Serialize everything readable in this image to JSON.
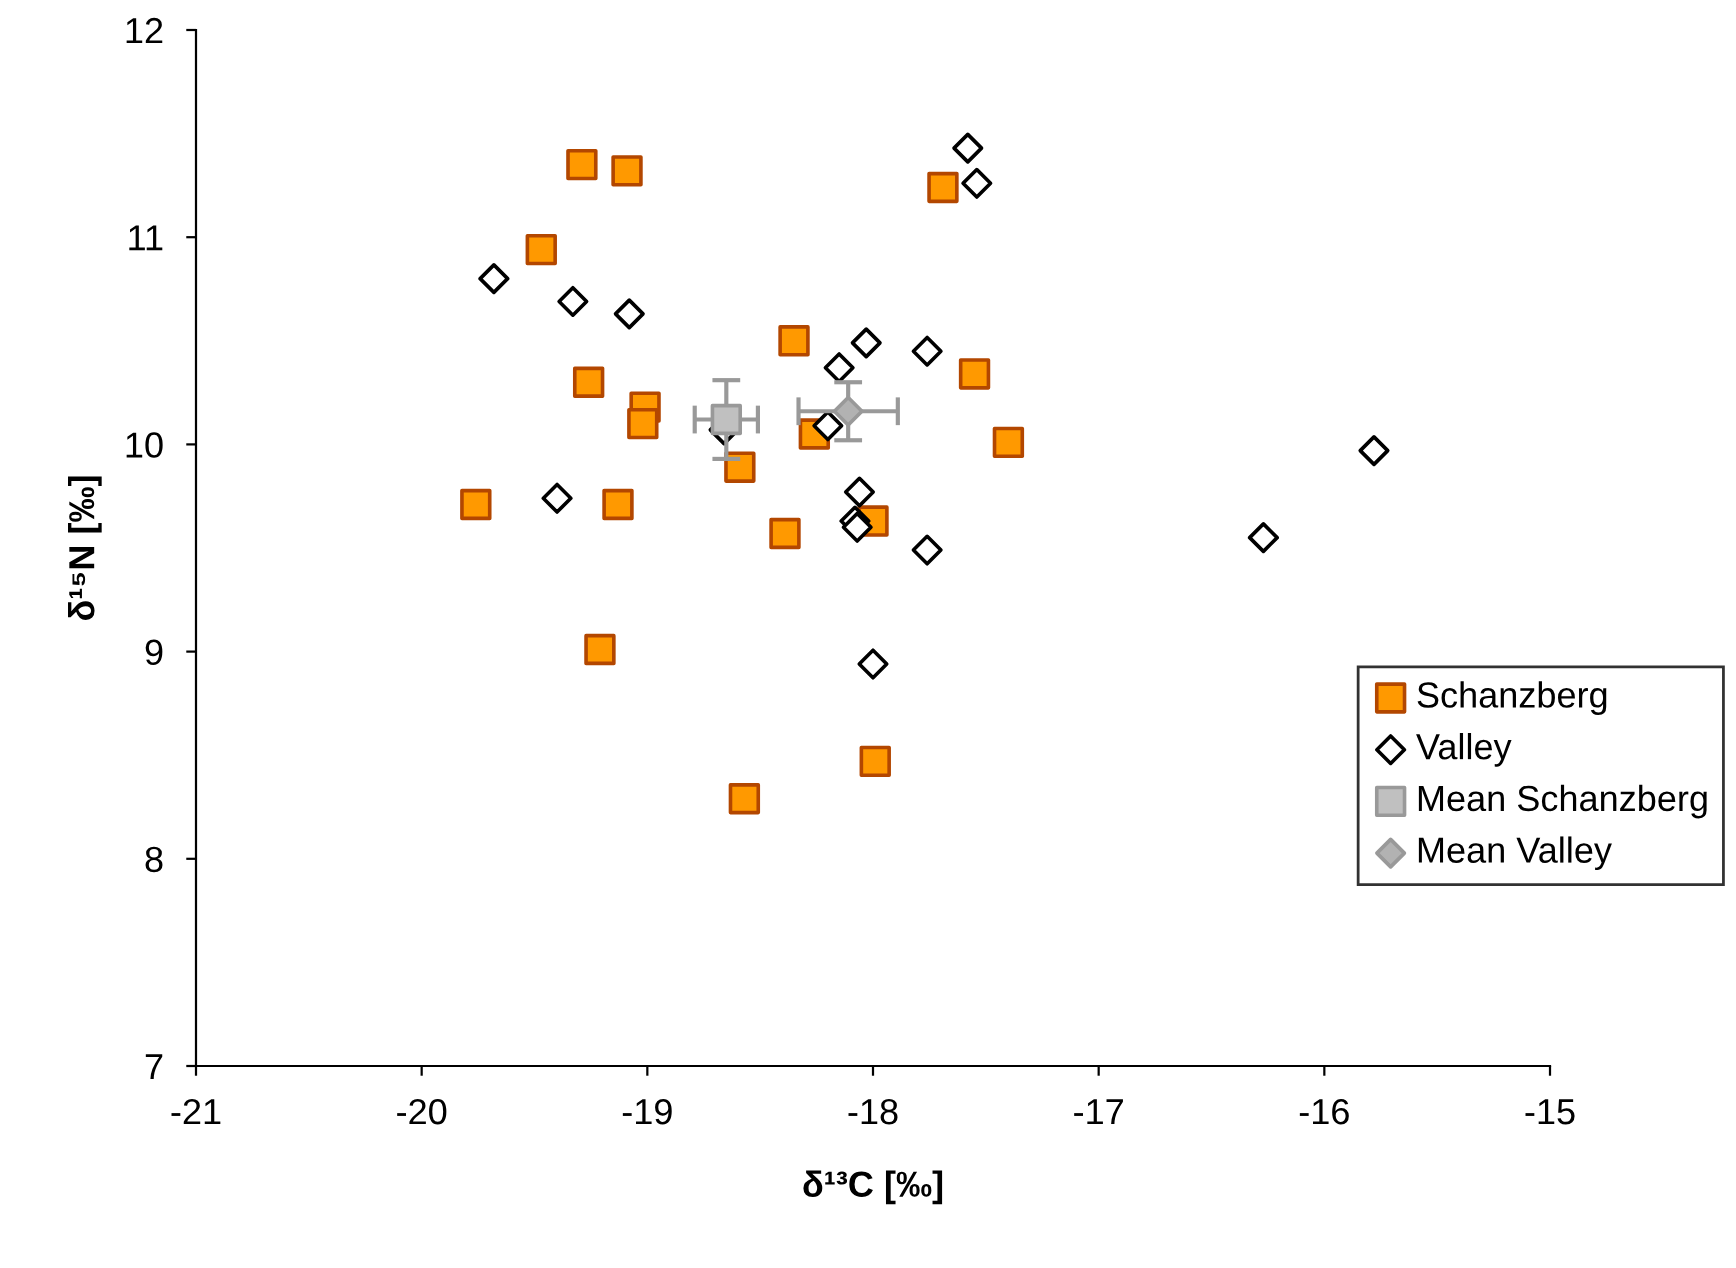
{
  "chart_data": {
    "type": "scatter",
    "xlabel": "δ¹³C [‰]",
    "ylabel": "δ¹⁵N [‰]",
    "xlim": [
      -21,
      -15
    ],
    "xticks": [
      -21,
      -20,
      -19,
      -18,
      -17,
      -16,
      -15
    ],
    "ylim": [
      7,
      12
    ],
    "yticks": [
      7,
      8,
      9,
      10,
      11,
      12
    ],
    "grid": false,
    "legend": "right",
    "series": [
      {
        "name": "Schanzberg",
        "color": "#ff9900",
        "marker": "square",
        "x": [
          -19.29,
          -19.09,
          -19.47,
          -19.76,
          -19.26,
          -19.01,
          -19.02,
          -19.13,
          -19.21,
          -18.35,
          -18.26,
          -18.59,
          -18.39,
          -18.57,
          -18.0,
          -17.99,
          -17.69,
          -17.55,
          -17.4
        ],
        "values": [
          11.35,
          11.32,
          10.94,
          9.71,
          10.3,
          10.18,
          10.1,
          9.71,
          9.01,
          10.5,
          10.05,
          9.89,
          9.57,
          8.29,
          9.63,
          8.47,
          11.24,
          10.34,
          10.01
        ]
      },
      {
        "name": "Valley",
        "color": "#ffffff",
        "marker": "diamond",
        "x": [
          -19.68,
          -19.33,
          -19.08,
          -19.4,
          -18.66,
          -18.15,
          -18.03,
          -18.2,
          -18.06,
          -18.08,
          -18.07,
          -17.76,
          -18.0,
          -17.76,
          -17.58,
          -17.54,
          -16.27,
          -15.78
        ],
        "values": [
          10.8,
          10.69,
          10.63,
          9.74,
          10.07,
          10.37,
          10.49,
          10.09,
          9.77,
          9.63,
          9.6,
          10.45,
          8.94,
          9.49,
          11.43,
          11.26,
          9.55,
          9.97
        ]
      },
      {
        "name": "Mean Schanzberg",
        "color": "#c0c0c0",
        "marker": "square",
        "x": [
          -18.65
        ],
        "values": [
          10.12
        ],
        "errors": [
          0.19
        ],
        "xerrors": [
          0.14
        ]
      },
      {
        "name": "Mean Valley",
        "color": "#b2b2b2",
        "marker": "diamond",
        "x": [
          -18.11
        ],
        "values": [
          10.16
        ],
        "errors": [
          0.14
        ],
        "xerrors": [
          0.22
        ]
      }
    ]
  }
}
